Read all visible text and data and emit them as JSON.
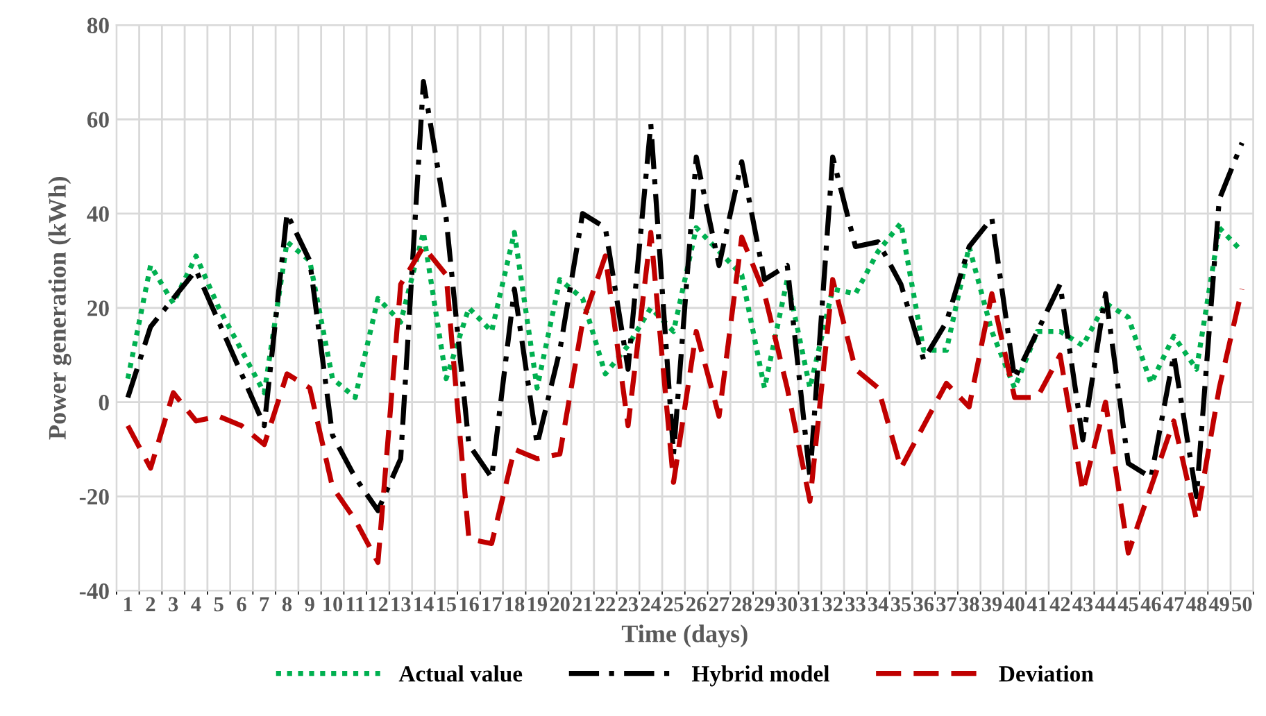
{
  "chart_data": {
    "type": "line",
    "xlabel": "Time (days)",
    "ylabel": "Power generation (kWh)",
    "categories": [
      "1",
      "2",
      "3",
      "4",
      "5",
      "6",
      "7",
      "8",
      "9",
      "10",
      "11",
      "12",
      "13",
      "14",
      "15",
      "16",
      "17",
      "18",
      "19",
      "20",
      "21",
      "22",
      "23",
      "24",
      "25",
      "26",
      "27",
      "28",
      "29",
      "30",
      "31",
      "32",
      "33",
      "34",
      "35",
      "36",
      "37",
      "38",
      "39",
      "40",
      "41",
      "42",
      "43",
      "44",
      "45",
      "46",
      "47",
      "48",
      "49",
      "50"
    ],
    "series": [
      {
        "name": "Actual value",
        "color": "#00b050",
        "line_style": "dotted",
        "values": [
          5,
          29,
          21,
          31,
          20,
          11,
          2,
          34,
          30,
          5,
          1,
          22,
          17,
          36,
          5,
          20,
          15,
          36,
          3,
          26,
          22,
          6,
          12,
          20,
          15,
          37,
          32,
          27,
          3,
          26,
          3,
          24,
          23,
          32,
          38,
          11,
          11,
          33,
          15,
          3,
          15,
          15,
          12,
          21,
          18,
          4,
          14,
          7,
          37,
          32
        ]
      },
      {
        "name": "Hybrid model",
        "color": "#000000",
        "line_style": "dashdot",
        "values": [
          1,
          16,
          22,
          28,
          17,
          6,
          -5,
          40,
          30,
          -7,
          -16,
          -23,
          -12,
          68,
          39,
          -9,
          -16,
          24,
          -9,
          11,
          40,
          37,
          7,
          59,
          -11,
          52,
          29,
          51,
          26,
          29,
          -16,
          52,
          33,
          34,
          25,
          9,
          17,
          33,
          39,
          5,
          15,
          25,
          -8,
          23,
          -13,
          -16,
          10,
          -20,
          43,
          55
        ]
      },
      {
        "name": "Deviation",
        "color": "#c00000",
        "line_style": "dashed",
        "values": [
          -5,
          -14,
          2,
          -4,
          -3,
          -5,
          -9,
          6,
          3,
          -18,
          -25,
          -34,
          25,
          33,
          27,
          -29,
          -30,
          -10,
          -12,
          -11,
          17,
          31,
          -5,
          36,
          -17,
          15,
          -3,
          35,
          23,
          3,
          -21,
          26,
          7,
          3,
          -14,
          -5,
          4,
          -1,
          23,
          1,
          1,
          10,
          -19,
          0,
          -32,
          -18,
          -4,
          -25,
          3,
          24
        ]
      }
    ],
    "ylim": [
      -40,
      80
    ],
    "yticks": [
      -40,
      -20,
      0,
      20,
      40,
      60,
      80
    ],
    "grid": true,
    "legend": "bottom",
    "marker": "none"
  }
}
